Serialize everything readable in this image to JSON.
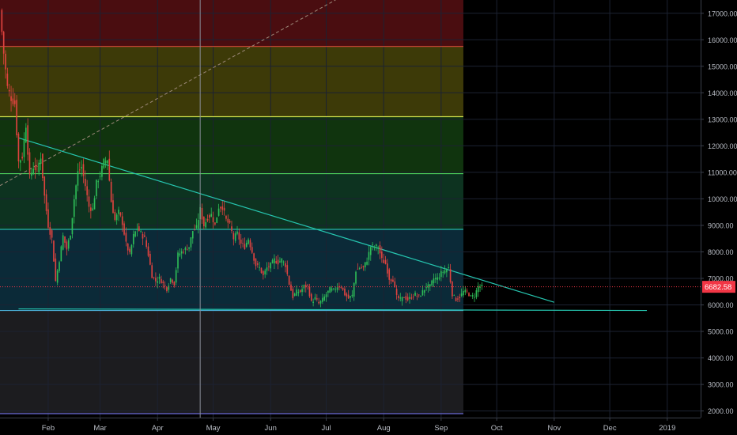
{
  "chart_data": {
    "type": "candlestick",
    "title": "",
    "xlabel": "",
    "ylabel": "",
    "ylim": [
      1750,
      17500
    ],
    "y_ticks": [
      "17000.00",
      "16000.00",
      "15000.00",
      "14000.00",
      "13000.00",
      "12000.00",
      "11000.00",
      "10000.00",
      "9000.00",
      "8000.00",
      "7000.00",
      "6000.00",
      "5000.00",
      "4000.00",
      "3000.00",
      "2000.00"
    ],
    "x_ticks": [
      "Feb",
      "Mar",
      "Apr",
      "May",
      "Jun",
      "Jul",
      "Aug",
      "Sep",
      "Oct",
      "Nov",
      "Dec",
      "2019"
    ],
    "x_domain": [
      "2018-01-06",
      "2019-01-19"
    ],
    "grid": true,
    "colors": {
      "background": "#000000",
      "up": "#2ebd57",
      "down": "#e0433f",
      "grid": "#1c2232",
      "current_price": "#f23645",
      "trendline": "#26c6b0",
      "projection": "#9e8a7a",
      "cursor": "#8a8f9a",
      "axis_text": "#b8bcc4"
    },
    "current_price": {
      "label": "6682.58",
      "value": 6682.58
    },
    "fibonacci_zones": [
      {
        "from": 15750,
        "to": 17500,
        "color": "#4a0d10"
      },
      {
        "from": 13100,
        "to": 15750,
        "color": "#3d3a08"
      },
      {
        "from": 10950,
        "to": 13100,
        "color": "#10340e"
      },
      {
        "from": 8850,
        "to": 10950,
        "color": "#0d3320"
      },
      {
        "from": 5790,
        "to": 8850,
        "color": "#0b2a38"
      },
      {
        "from": 1900,
        "to": 5790,
        "color": "#1c1c1f"
      }
    ],
    "fibonacci_levels": [
      {
        "value": 15750,
        "color": "#d84a3a"
      },
      {
        "value": 13100,
        "color": "#c9d84a"
      },
      {
        "value": 10950,
        "color": "#4ccf5a"
      },
      {
        "value": 8850,
        "color": "#26b5a8"
      },
      {
        "value": 5790,
        "color": "#4bb0d8"
      },
      {
        "value": 1900,
        "color": "#6a6ad8"
      }
    ],
    "fib_end_date": "2018-09-13",
    "lines": [
      {
        "kind": "trendline",
        "from": {
          "date": "2018-01-16",
          "price": 12300
        },
        "to": {
          "date": "2018-11-01",
          "price": 6100
        }
      },
      {
        "kind": "support",
        "from": {
          "date": "2018-01-16",
          "price": 5850
        },
        "to": {
          "date": "2018-12-21",
          "price": 5790
        }
      },
      {
        "kind": "projection",
        "from": {
          "date": "2018-01-06",
          "price": 10500
        },
        "to": {
          "date": "2018-07-06",
          "price": 17500
        }
      }
    ],
    "cursor_date": "2018-04-24",
    "price_points": [
      [
        "2018-01-06",
        17100
      ],
      [
        "2018-01-08",
        15500
      ],
      [
        "2018-01-10",
        14200
      ],
      [
        "2018-01-12",
        13800
      ],
      [
        "2018-01-14",
        13600
      ],
      [
        "2018-01-16",
        11400
      ],
      [
        "2018-01-18",
        11600
      ],
      [
        "2018-01-20",
        12800
      ],
      [
        "2018-01-22",
        10800
      ],
      [
        "2018-01-24",
        11200
      ],
      [
        "2018-01-26",
        11100
      ],
      [
        "2018-01-28",
        11600
      ],
      [
        "2018-01-30",
        10100
      ],
      [
        "2018-02-01",
        9000
      ],
      [
        "2018-02-03",
        8500
      ],
      [
        "2018-02-05",
        6900
      ],
      [
        "2018-02-07",
        7700
      ],
      [
        "2018-02-09",
        8600
      ],
      [
        "2018-02-11",
        8100
      ],
      [
        "2018-02-13",
        8700
      ],
      [
        "2018-02-15",
        10000
      ],
      [
        "2018-02-17",
        11000
      ],
      [
        "2018-02-19",
        11200
      ],
      [
        "2018-02-21",
        10500
      ],
      [
        "2018-02-23",
        9700
      ],
      [
        "2018-02-25",
        9600
      ],
      [
        "2018-02-27",
        10600
      ],
      [
        "2018-03-01",
        10900
      ],
      [
        "2018-03-03",
        11400
      ],
      [
        "2018-03-05",
        11500
      ],
      [
        "2018-03-07",
        9900
      ],
      [
        "2018-03-09",
        9200
      ],
      [
        "2018-03-11",
        9500
      ],
      [
        "2018-03-13",
        9100
      ],
      [
        "2018-03-15",
        8300
      ],
      [
        "2018-03-17",
        7900
      ],
      [
        "2018-03-19",
        8600
      ],
      [
        "2018-03-21",
        8900
      ],
      [
        "2018-03-23",
        8700
      ],
      [
        "2018-03-25",
        8500
      ],
      [
        "2018-03-27",
        7900
      ],
      [
        "2018-03-29",
        7100
      ],
      [
        "2018-03-31",
        6900
      ],
      [
        "2018-04-02",
        7000
      ],
      [
        "2018-04-04",
        6800
      ],
      [
        "2018-04-06",
        6600
      ],
      [
        "2018-04-08",
        7000
      ],
      [
        "2018-04-10",
        6800
      ],
      [
        "2018-04-12",
        7900
      ],
      [
        "2018-04-14",
        8000
      ],
      [
        "2018-04-16",
        8100
      ],
      [
        "2018-04-18",
        8200
      ],
      [
        "2018-04-20",
        8800
      ],
      [
        "2018-04-22",
        8900
      ],
      [
        "2018-04-24",
        9600
      ],
      [
        "2018-04-26",
        9000
      ],
      [
        "2018-04-28",
        9300
      ],
      [
        "2018-04-30",
        9400
      ],
      [
        "2018-05-02",
        9000
      ],
      [
        "2018-05-04",
        9700
      ],
      [
        "2018-05-06",
        9700
      ],
      [
        "2018-05-08",
        9200
      ],
      [
        "2018-05-10",
        9000
      ],
      [
        "2018-05-12",
        8500
      ],
      [
        "2018-05-14",
        8700
      ],
      [
        "2018-05-16",
        8300
      ],
      [
        "2018-05-18",
        8200
      ],
      [
        "2018-05-20",
        8500
      ],
      [
        "2018-05-22",
        8000
      ],
      [
        "2018-05-24",
        7500
      ],
      [
        "2018-05-26",
        7400
      ],
      [
        "2018-05-28",
        7100
      ],
      [
        "2018-05-30",
        7400
      ],
      [
        "2018-06-01",
        7500
      ],
      [
        "2018-06-03",
        7700
      ],
      [
        "2018-06-05",
        7600
      ],
      [
        "2018-06-07",
        7700
      ],
      [
        "2018-06-09",
        7500
      ],
      [
        "2018-06-11",
        6800
      ],
      [
        "2018-06-13",
        6300
      ],
      [
        "2018-06-15",
        6500
      ],
      [
        "2018-06-17",
        6500
      ],
      [
        "2018-06-19",
        6700
      ],
      [
        "2018-06-21",
        6700
      ],
      [
        "2018-06-23",
        6100
      ],
      [
        "2018-06-25",
        6250
      ],
      [
        "2018-06-27",
        6050
      ],
      [
        "2018-06-29",
        6200
      ],
      [
        "2018-07-01",
        6400
      ],
      [
        "2018-07-03",
        6600
      ],
      [
        "2018-07-05",
        6550
      ],
      [
        "2018-07-07",
        6700
      ],
      [
        "2018-07-09",
        6700
      ],
      [
        "2018-07-11",
        6400
      ],
      [
        "2018-07-13",
        6250
      ],
      [
        "2018-07-15",
        6350
      ],
      [
        "2018-07-17",
        7300
      ],
      [
        "2018-07-19",
        7400
      ],
      [
        "2018-07-21",
        7400
      ],
      [
        "2018-07-23",
        7700
      ],
      [
        "2018-07-25",
        8200
      ],
      [
        "2018-07-27",
        8200
      ],
      [
        "2018-07-29",
        8200
      ],
      [
        "2018-07-31",
        7700
      ],
      [
        "2018-08-02",
        7550
      ],
      [
        "2018-08-04",
        7000
      ],
      [
        "2018-08-06",
        6950
      ],
      [
        "2018-08-08",
        6300
      ],
      [
        "2018-08-10",
        6200
      ],
      [
        "2018-08-12",
        6300
      ],
      [
        "2018-08-14",
        6200
      ],
      [
        "2018-08-16",
        6300
      ],
      [
        "2018-08-18",
        6400
      ],
      [
        "2018-08-20",
        6300
      ],
      [
        "2018-08-22",
        6500
      ],
      [
        "2018-08-24",
        6700
      ],
      [
        "2018-08-26",
        6700
      ],
      [
        "2018-08-28",
        7000
      ],
      [
        "2018-08-30",
        7000
      ],
      [
        "2018-09-01",
        7200
      ],
      [
        "2018-09-03",
        7300
      ],
      [
        "2018-09-05",
        7400
      ],
      [
        "2018-09-07",
        6400
      ],
      [
        "2018-09-09",
        6200
      ],
      [
        "2018-09-11",
        6300
      ],
      [
        "2018-09-13",
        6500
      ],
      [
        "2018-09-15",
        6500
      ],
      [
        "2018-09-17",
        6300
      ],
      [
        "2018-09-19",
        6350
      ],
      [
        "2018-09-21",
        6700
      ],
      [
        "2018-09-23",
        6682.58
      ]
    ]
  }
}
